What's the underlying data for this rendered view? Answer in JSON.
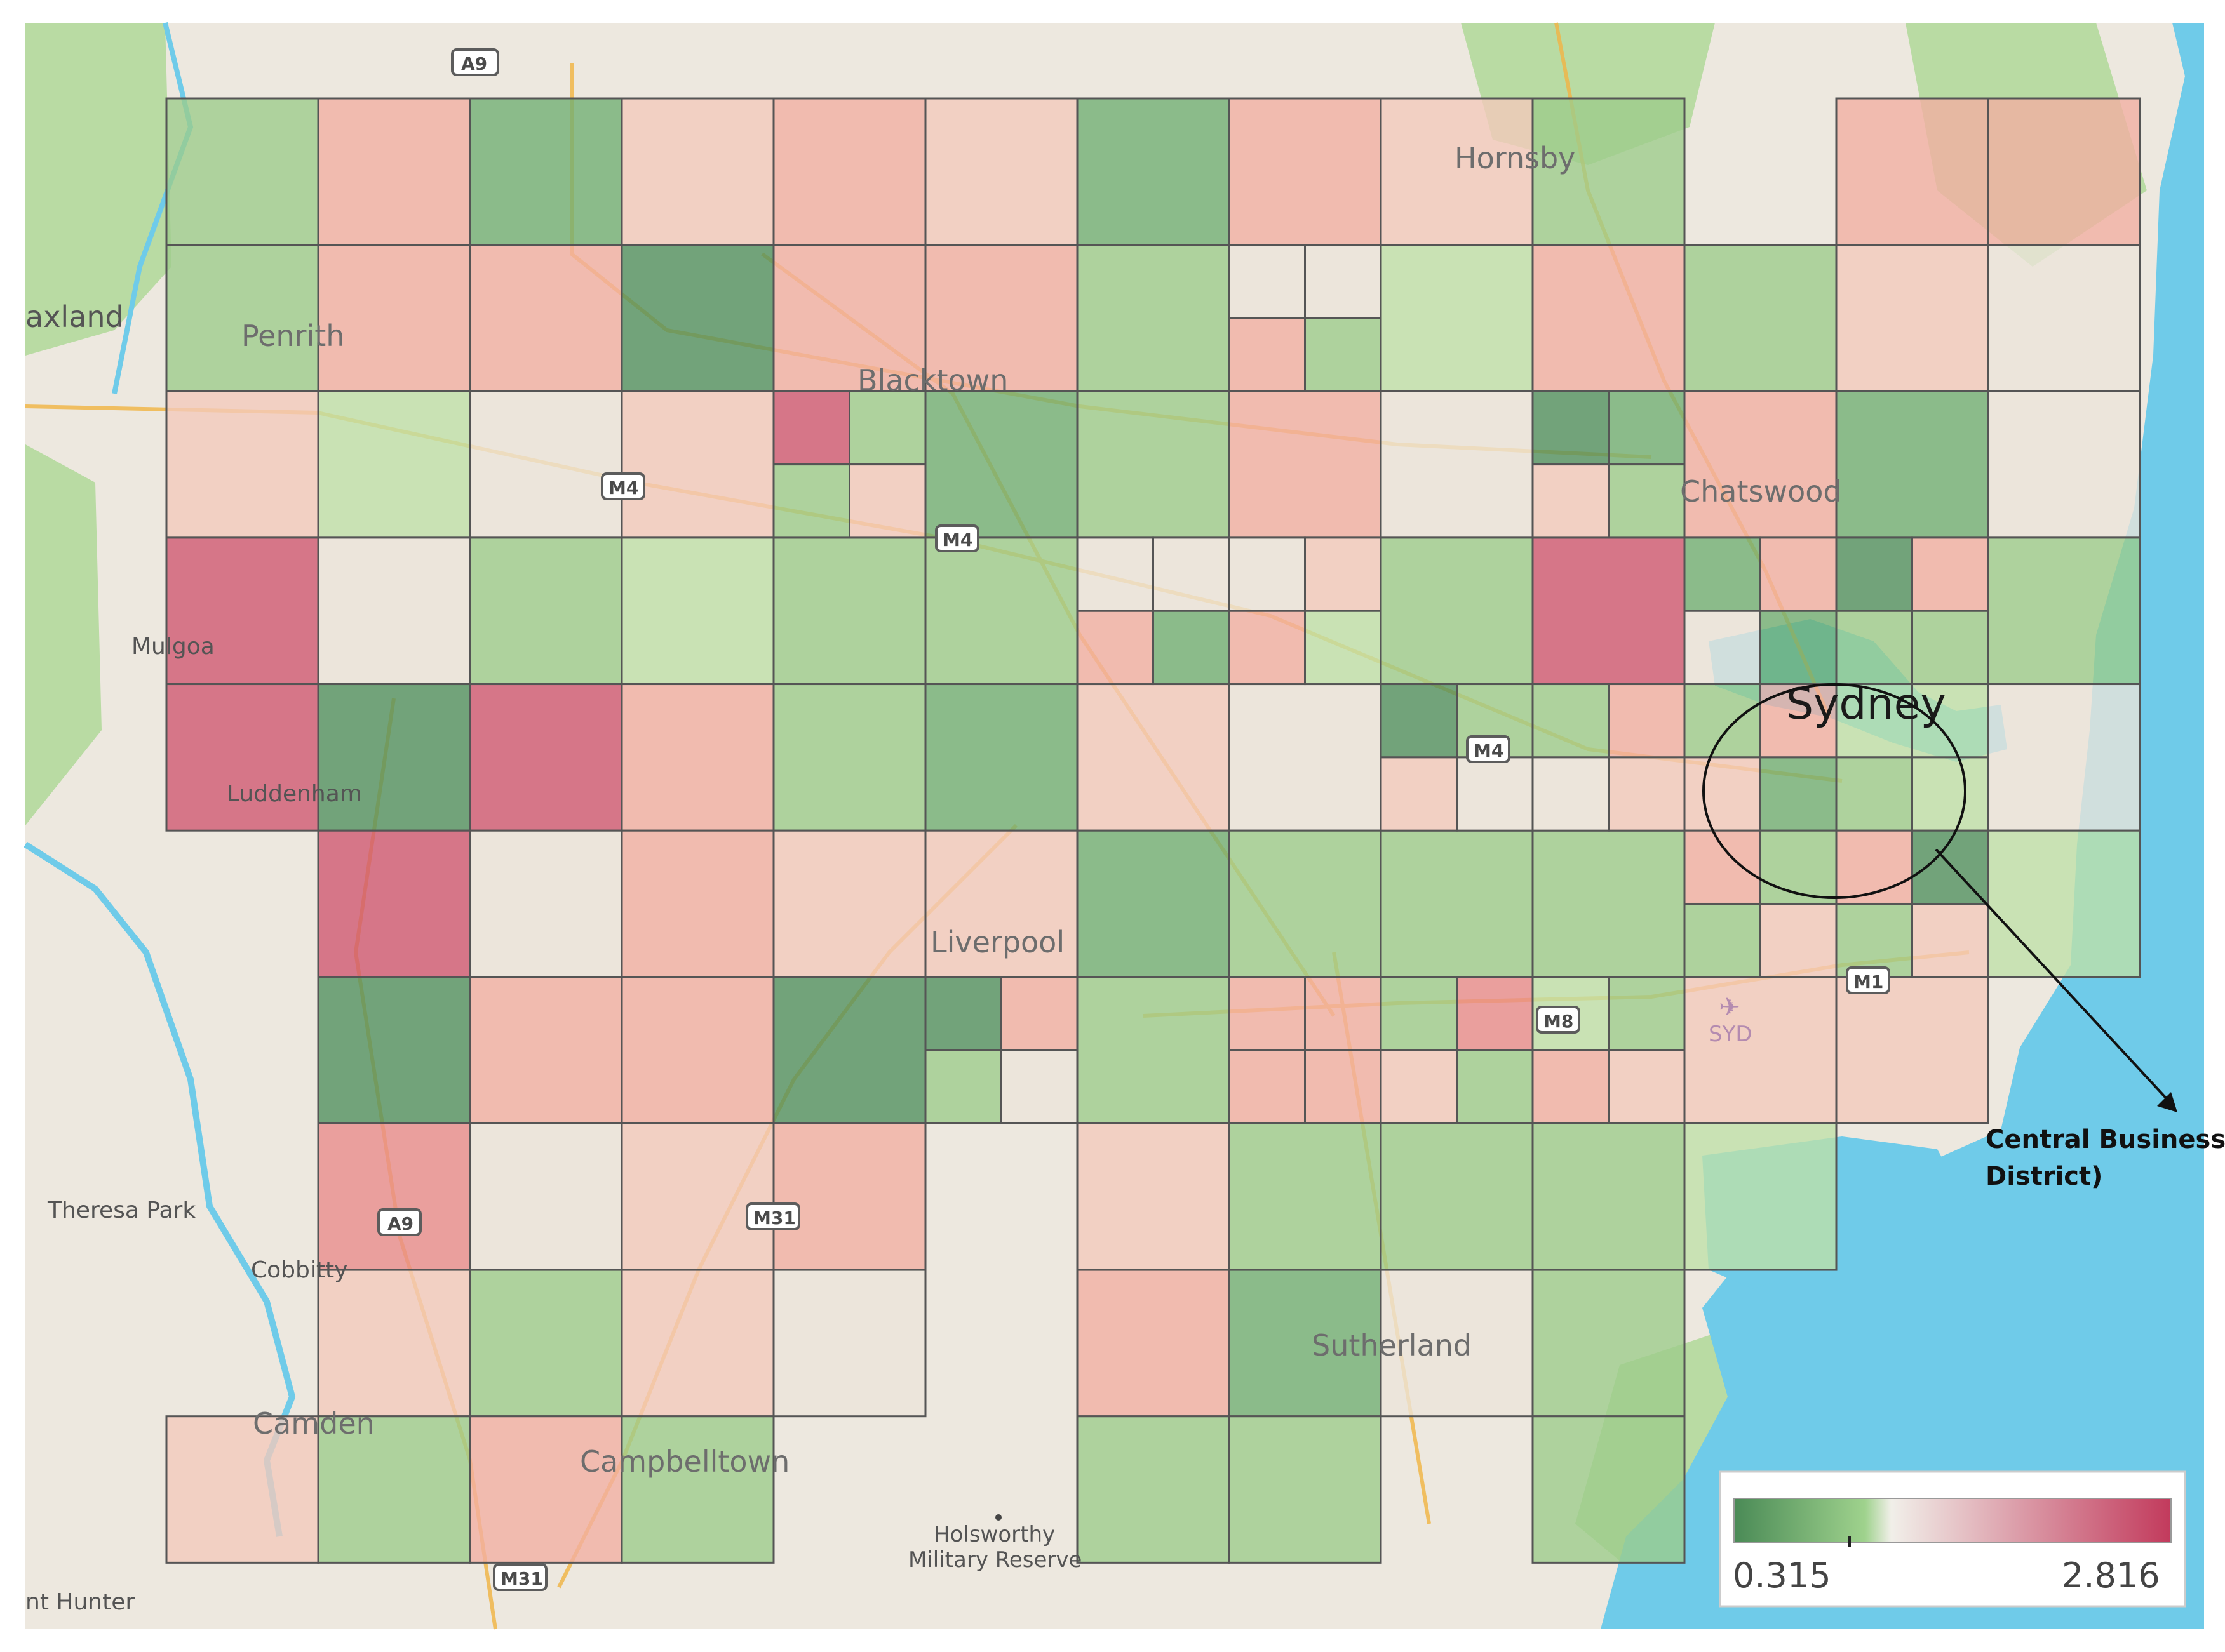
{
  "map": {
    "places": {
      "penrith": "Penrith",
      "blacktown": "Blacktown",
      "hornsby": "Hornsby",
      "chatswood": "Chatswood",
      "sydney": "Sydney",
      "mulgoa": "Mulgoa",
      "luddenham": "Luddenham",
      "liverpool": "Liverpool",
      "theresa_park": "Theresa Park",
      "cobbitty": "Cobbitty",
      "camden": "Camden",
      "campbelltown": "Campbelltown",
      "sutherland": "Sutherland",
      "holsworthy_1": "Holsworthy",
      "holsworthy_2": "Military Reserve",
      "syd_airport": "SYD",
      "edge_left": "axland",
      "edge_bottom": "nt Hunter"
    },
    "roads": {
      "a9_top": "A9",
      "a9_mid": "A9",
      "m4_a": "M4",
      "m4_b": "M4",
      "m4_c": "M4",
      "m31_a": "M31",
      "m31_b": "M31",
      "m8": "M8",
      "m1": "M1"
    },
    "annotation": {
      "line1": "Central Business",
      "line2": "District)"
    },
    "legend": {
      "min_label": "0.315",
      "max_label": "2.816",
      "min_value": 0.315,
      "max_value": 2.816,
      "low_color": "#4a8a56",
      "mid_color": "#f1efe9",
      "high_color": "#c23a5c"
    },
    "colors": {
      "land": "#ede8df",
      "park": "#b3d99c",
      "water": "#6fcbe9",
      "grid_line": "#555555"
    }
  }
}
